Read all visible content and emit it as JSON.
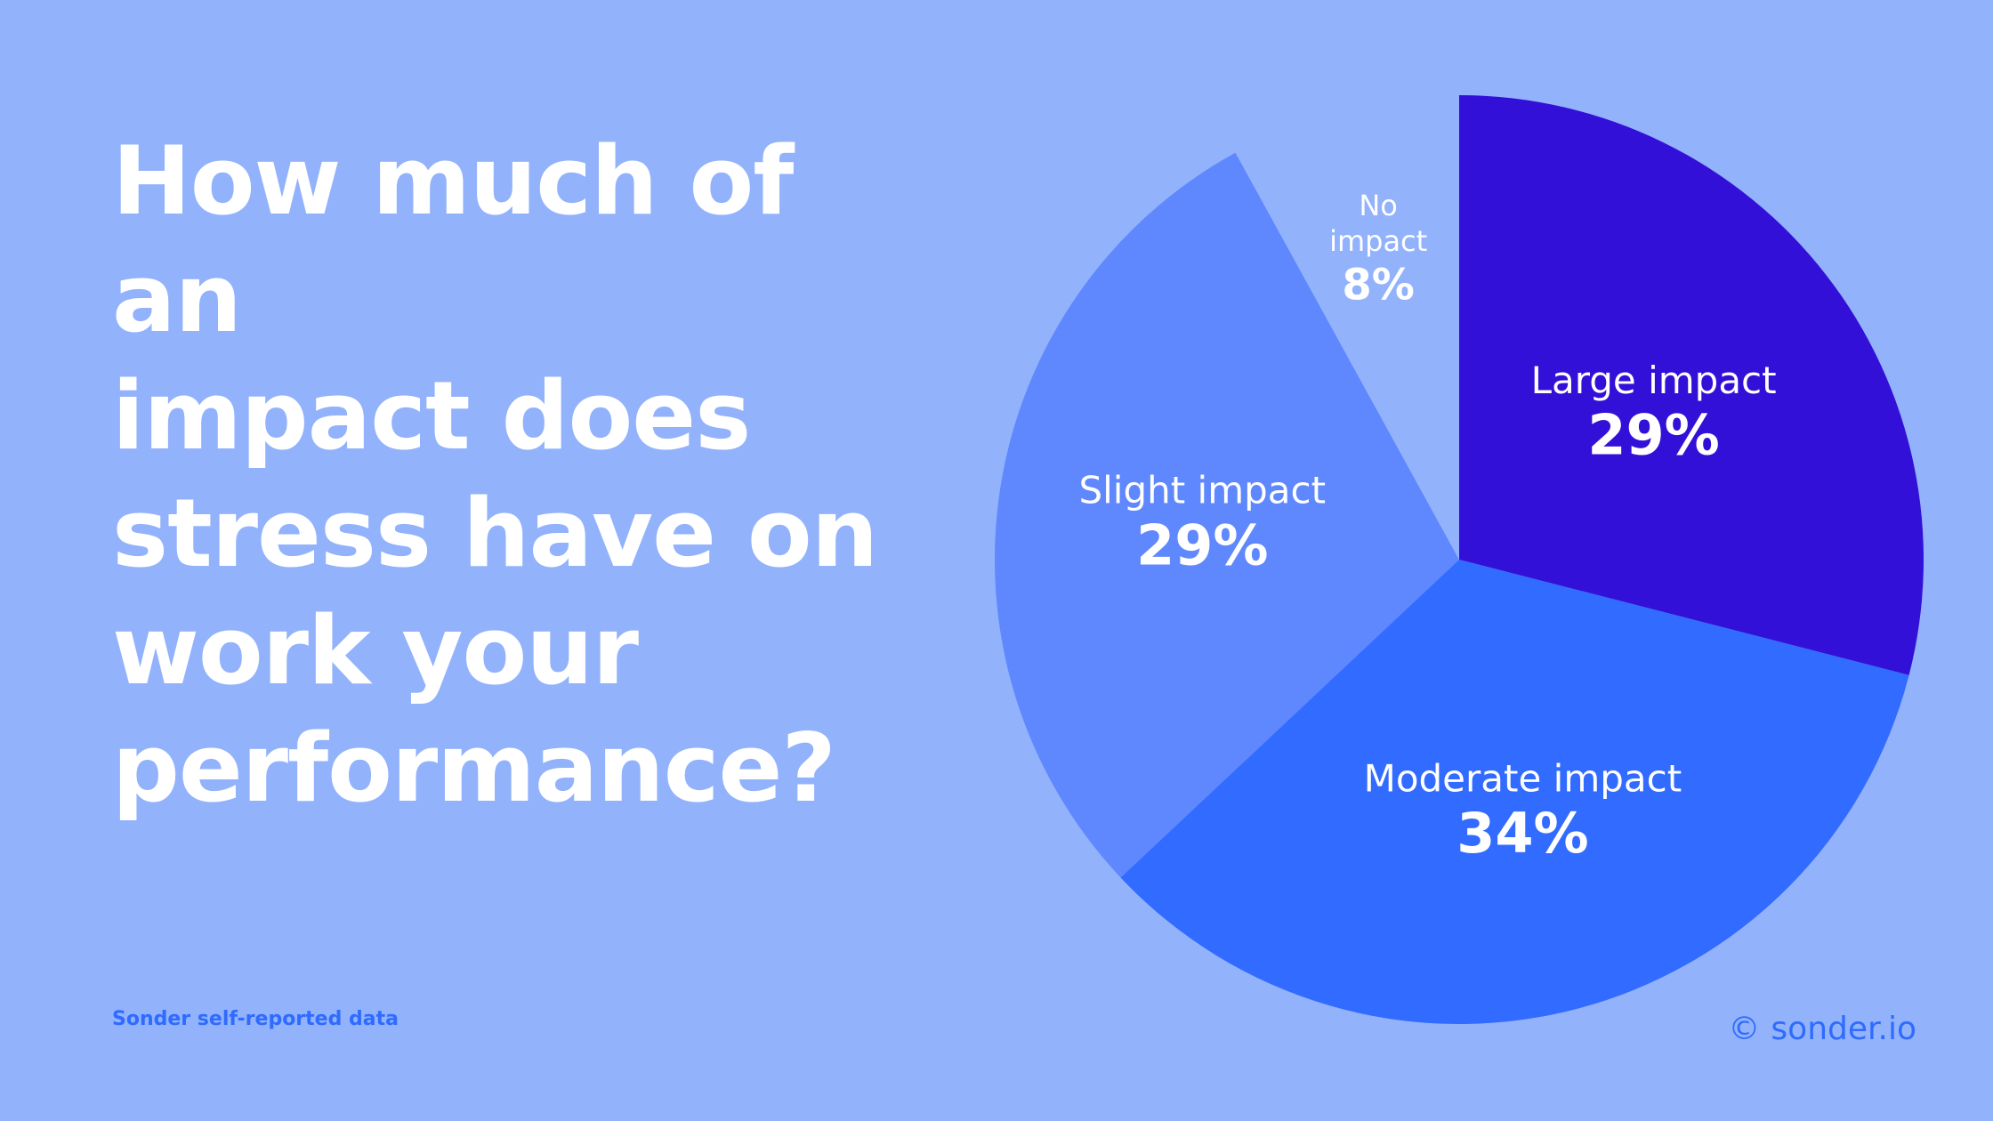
{
  "question": {
    "lines": [
      "How much of an",
      "impact does",
      "stress have on",
      "work your",
      "performance?"
    ]
  },
  "source": "Sonder self-reported data",
  "brand": {
    "symbol": "©",
    "name": "sonder.io"
  },
  "colors": {
    "background": "#92B2FC",
    "accent": "#2F6BFF"
  },
  "chart_data": {
    "type": "pie",
    "title": "",
    "start": "12 o'clock",
    "direction": "clockwise",
    "slices": [
      {
        "label": "Large impact",
        "label_lines": [
          "Large impact"
        ],
        "value": 29,
        "value_label": "29%",
        "color": "#3310D8"
      },
      {
        "label": "Moderate impact",
        "label_lines": [
          "Moderate impact"
        ],
        "value": 34,
        "value_label": "34%",
        "color": "#326BFF"
      },
      {
        "label": "Slight impact",
        "label_lines": [
          "Slight impact"
        ],
        "value": 29,
        "value_label": "29%",
        "color": "#5F88FE"
      },
      {
        "label": "No impact",
        "label_lines": [
          "No",
          "impact"
        ],
        "value": 8,
        "value_label": "8%",
        "color": "#92B2FC"
      }
    ]
  }
}
